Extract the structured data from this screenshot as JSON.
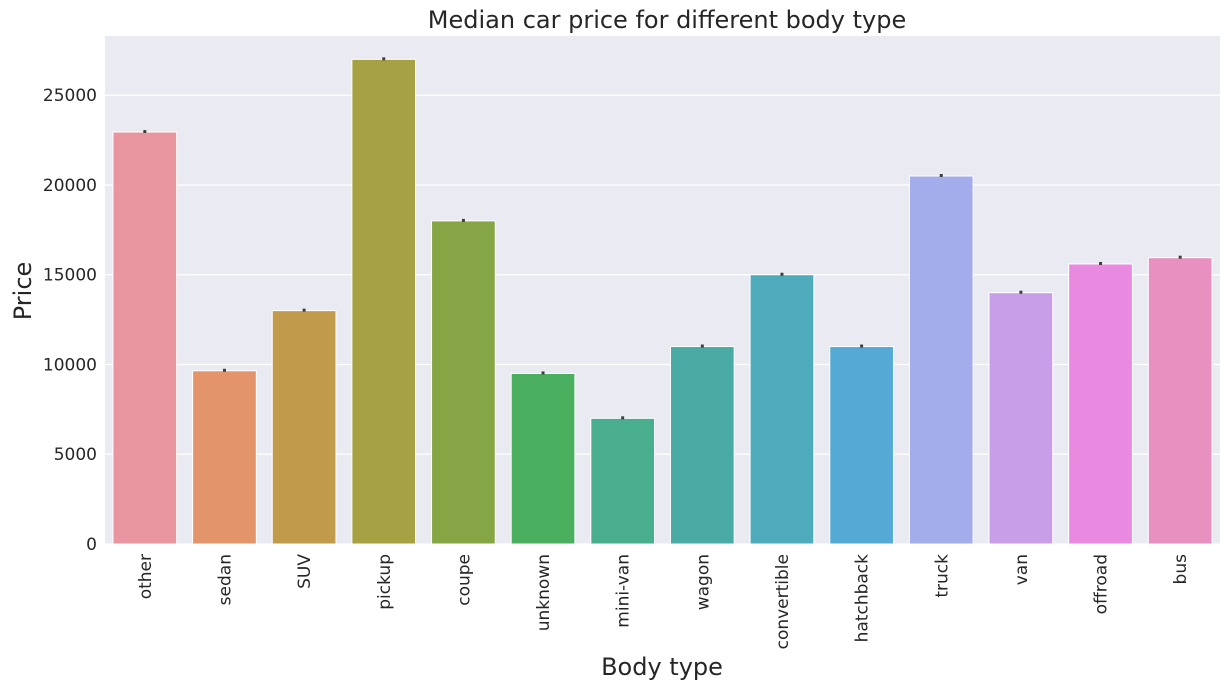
{
  "chart_data": {
    "type": "bar",
    "title": "Median car price for different body type",
    "xlabel": "Body type",
    "ylabel": "Price",
    "categories": [
      "other",
      "sedan",
      "SUV",
      "pickup",
      "coupe",
      "unknown",
      "mini-van",
      "wagon",
      "convertible",
      "hatchback",
      "truck",
      "van",
      "offroad",
      "bus"
    ],
    "values": [
      22950,
      9650,
      13000,
      27000,
      18000,
      9500,
      7000,
      11000,
      15000,
      11000,
      20500,
      14000,
      15600,
      15950
    ],
    "colors": [
      "#e9959f",
      "#e3946b",
      "#c19a4b",
      "#a6a142",
      "#86a545",
      "#4aaf5e",
      "#48ae8e",
      "#49aba4",
      "#4eabbb",
      "#55aad5",
      "#a3adeb",
      "#c89ee9",
      "#e98ae0",
      "#e890c0"
    ],
    "ylim": [
      0,
      28300
    ],
    "yticks": [
      0,
      5000,
      10000,
      15000,
      20000,
      25000
    ],
    "grid": true,
    "background": "#eaeaf2"
  }
}
